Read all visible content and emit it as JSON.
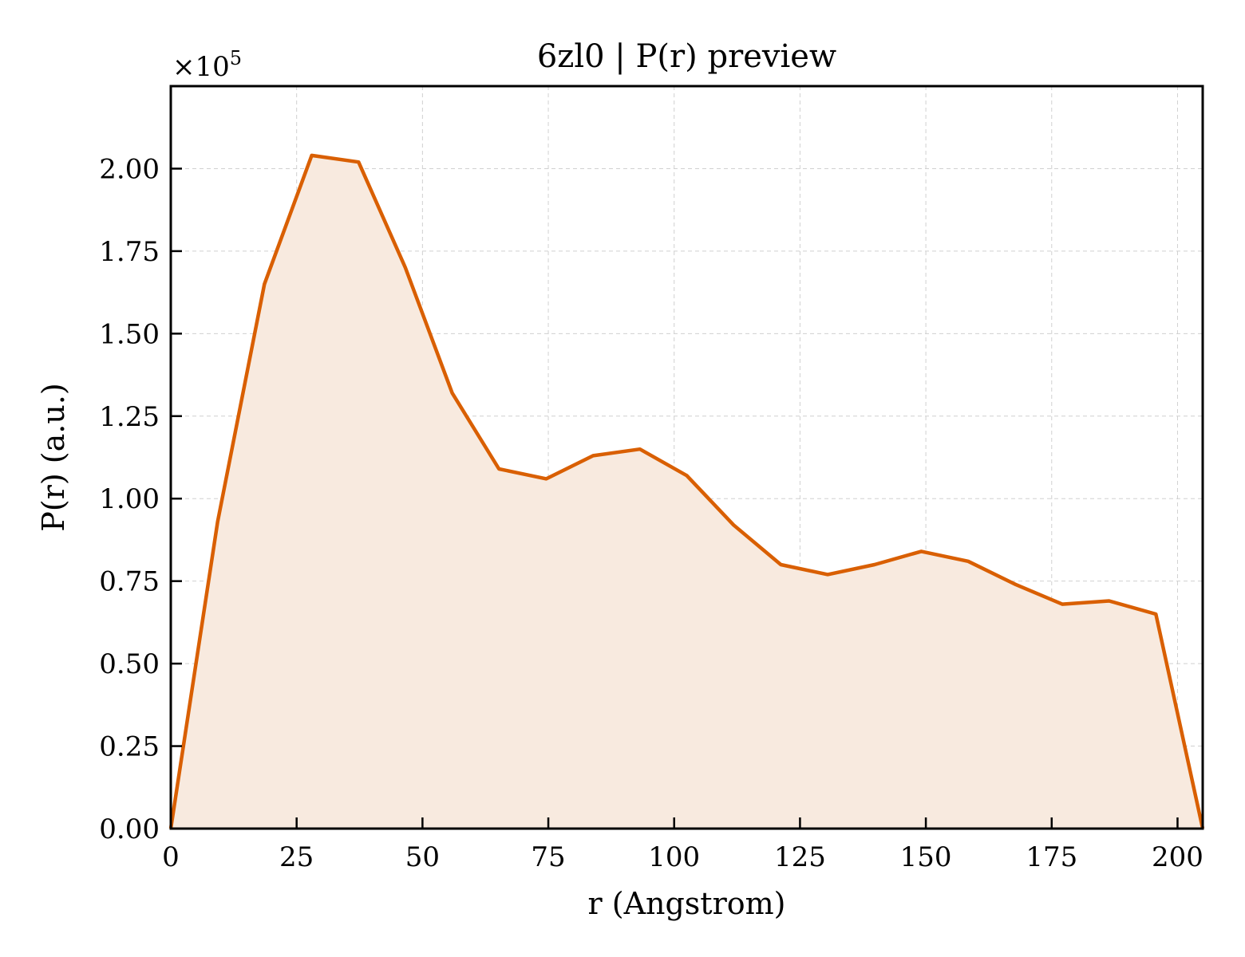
{
  "chart_data": {
    "type": "area",
    "title": "6zl0 | P(r) preview",
    "xlabel": "r (Angstrom)",
    "ylabel": "P(r) (a.u.)",
    "y_multiplier": {
      "base": "×10",
      "exponent": "5"
    },
    "xlim": [
      0,
      205
    ],
    "ylim": [
      0,
      2.25
    ],
    "x_ticks": [
      0,
      25,
      50,
      75,
      100,
      125,
      150,
      175,
      200
    ],
    "x_tick_labels": [
      "0",
      "25",
      "50",
      "75",
      "100",
      "125",
      "150",
      "175",
      "200"
    ],
    "y_ticks": [
      0,
      0.25,
      0.5,
      0.75,
      1.0,
      1.25,
      1.5,
      1.75,
      2.0
    ],
    "y_tick_labels": [
      "0.00",
      "0.25",
      "0.50",
      "0.75",
      "1.00",
      "1.25",
      "1.50",
      "1.75",
      "2.00"
    ],
    "grid": true,
    "colors": {
      "line": "#d95f02",
      "fill": "#f8eadf"
    },
    "series": [
      {
        "x": [
          0,
          9.3,
          18.6,
          28.0,
          37.3,
          46.6,
          55.9,
          65.2,
          74.6,
          83.9,
          93.2,
          102.5,
          111.8,
          121.2,
          130.5,
          139.8,
          149.1,
          158.4,
          167.8,
          177.1,
          186.4,
          195.7,
          205
        ],
        "y": [
          0,
          0.93,
          1.65,
          2.04,
          2.02,
          1.7,
          1.32,
          1.09,
          1.06,
          1.13,
          1.15,
          1.07,
          0.92,
          0.8,
          0.77,
          0.8,
          0.84,
          0.81,
          0.74,
          0.68,
          0.69,
          0.65,
          0
        ]
      }
    ]
  }
}
